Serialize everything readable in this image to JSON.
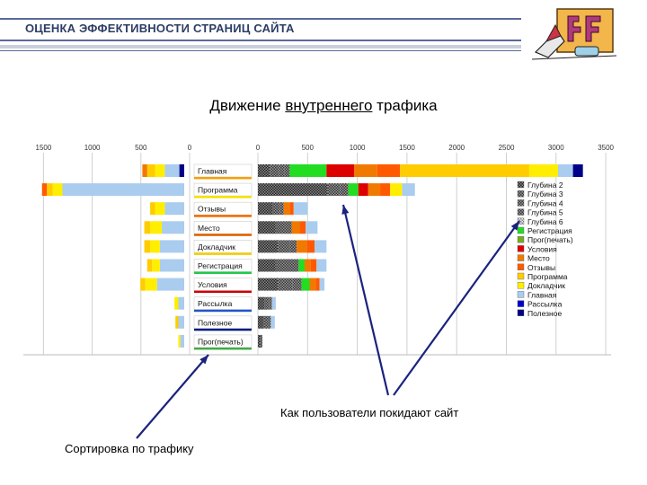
{
  "header": {
    "title": "ОЦЕНКА ЭФФЕКТИВНОСТИ СТРАНИЦ САЙТА"
  },
  "subtitle": {
    "pre": "Движение ",
    "underlined": "внутреннего",
    "post": " трафика"
  },
  "annotations": {
    "exit": "Как пользователи покидают сайт",
    "sort": "Сортировка по трафику"
  },
  "chart_data": {
    "type": "bar",
    "title": "Движение внутреннего трафика",
    "left_axis": {
      "ticks": [
        1500,
        1000,
        500,
        0
      ],
      "labels": [
        "1500",
        "1000",
        "500",
        "0"
      ]
    },
    "right_axis": {
      "ticks": [
        0,
        500,
        1000,
        1500,
        2000,
        2500,
        3000,
        3500
      ],
      "labels": [
        "0",
        "500",
        "1000",
        "1500",
        "2000",
        "2500",
        "3000",
        "3500"
      ]
    },
    "grid": true,
    "legend_placement": "right",
    "categories": [
      "Главная",
      "Программа",
      "Отзывы",
      "Место",
      "Докладчик",
      "Регистрация",
      "Условия",
      "Рассылка",
      "Полезное",
      "Прог(печать)"
    ],
    "category_colors": [
      "#f5a000",
      "#f5e400",
      "#f06a00",
      "#e06000",
      "#f5d000",
      "#22c84a",
      "#cc0000",
      "#2255cc",
      "#001a80",
      "#44aa44"
    ],
    "series": [
      {
        "name": "Глубина 2",
        "color": "#333333",
        "pattern": "dark"
      },
      {
        "name": "Глубина 3",
        "color": "#555555",
        "pattern": "dots"
      },
      {
        "name": "Глубина 4",
        "color": "#777777",
        "pattern": "dots"
      },
      {
        "name": "Глубина 5",
        "color": "#999999",
        "pattern": "dots"
      },
      {
        "name": "Глубина 6",
        "color": "#bbbbbb",
        "pattern": "light"
      },
      {
        "name": "Регистрация",
        "color": "#22dd22"
      },
      {
        "name": "Прог(печать)",
        "color": "#77aa22"
      },
      {
        "name": "Условия",
        "color": "#dd0000"
      },
      {
        "name": "Место",
        "color": "#f07a00"
      },
      {
        "name": "Отзывы",
        "color": "#ff5a00"
      },
      {
        "name": "Программа",
        "color": "#ffcc00"
      },
      {
        "name": "Докладчик",
        "color": "#ffee00"
      },
      {
        "name": "Главная",
        "color": "#aaccee"
      },
      {
        "name": "Рассылка",
        "color": "#0000cc"
      },
      {
        "name": "Полезное",
        "color": "#000088"
      }
    ],
    "incoming": [
      [
        {
          "s": "Полезное",
          "v": 50
        },
        {
          "s": "Главная",
          "v": 150
        },
        {
          "s": "Докладчик",
          "v": 100
        },
        {
          "s": "Программа",
          "v": 80
        },
        {
          "s": "Место",
          "v": 50
        }
      ],
      [
        {
          "s": "Главная",
          "v": 1250
        },
        {
          "s": "Докладчик",
          "v": 100
        },
        {
          "s": "Программа",
          "v": 60
        },
        {
          "s": "Отзывы",
          "v": 50
        }
      ],
      [
        {
          "s": "Главная",
          "v": 200
        },
        {
          "s": "Докладчик",
          "v": 100
        },
        {
          "s": "Программа",
          "v": 50
        }
      ],
      [
        {
          "s": "Главная",
          "v": 230
        },
        {
          "s": "Докладчик",
          "v": 120
        },
        {
          "s": "Программа",
          "v": 60
        }
      ],
      [
        {
          "s": "Главная",
          "v": 250
        },
        {
          "s": "Докладчик",
          "v": 100
        },
        {
          "s": "Программа",
          "v": 60
        }
      ],
      [
        {
          "s": "Главная",
          "v": 250
        },
        {
          "s": "Докладчик",
          "v": 80
        },
        {
          "s": "Программа",
          "v": 50
        }
      ],
      [
        {
          "s": "Главная",
          "v": 280
        },
        {
          "s": "Докладчик",
          "v": 120
        },
        {
          "s": "Программа",
          "v": 50
        }
      ],
      [
        {
          "s": "Главная",
          "v": 60
        },
        {
          "s": "Докладчик",
          "v": 40
        }
      ],
      [
        {
          "s": "Главная",
          "v": 60
        },
        {
          "s": "Программа",
          "v": 30
        }
      ],
      [
        {
          "s": "Главная",
          "v": 40
        },
        {
          "s": "Докладчик",
          "v": 20
        }
      ]
    ],
    "outgoing": [
      [
        {
          "s": "Глубина 2",
          "v": 120
        },
        {
          "s": "Глубина 3",
          "v": 90
        },
        {
          "s": "Глубина 4",
          "v": 60
        },
        {
          "s": "Глубина 5",
          "v": 50
        },
        {
          "s": "Регистрация",
          "v": 370
        },
        {
          "s": "Условия",
          "v": 280
        },
        {
          "s": "Место",
          "v": 230
        },
        {
          "s": "Отзывы",
          "v": 230
        },
        {
          "s": "Программа",
          "v": 1300
        },
        {
          "s": "Докладчик",
          "v": 290
        },
        {
          "s": "Главная",
          "v": 150
        },
        {
          "s": "Полезное",
          "v": 100
        }
      ],
      [
        {
          "s": "Глубина 2",
          "v": 700
        },
        {
          "s": "Глубина 3",
          "v": 130
        },
        {
          "s": "Глубина 4",
          "v": 80
        },
        {
          "s": "Регистрация",
          "v": 100
        },
        {
          "s": "Условия",
          "v": 100
        },
        {
          "s": "Место",
          "v": 120
        },
        {
          "s": "Отзывы",
          "v": 100
        },
        {
          "s": "Докладчик",
          "v": 120
        },
        {
          "s": "Главная",
          "v": 130
        }
      ],
      [
        {
          "s": "Глубина 2",
          "v": 150
        },
        {
          "s": "Глубина 3",
          "v": 70
        },
        {
          "s": "Глубина 4",
          "v": 40
        },
        {
          "s": "Место",
          "v": 60
        },
        {
          "s": "Отзывы",
          "v": 40
        },
        {
          "s": "Главная",
          "v": 140
        }
      ],
      [
        {
          "s": "Глубина 2",
          "v": 180
        },
        {
          "s": "Глубина 3",
          "v": 100
        },
        {
          "s": "Глубина 4",
          "v": 60
        },
        {
          "s": "Место",
          "v": 80
        },
        {
          "s": "Отзывы",
          "v": 60
        },
        {
          "s": "Главная",
          "v": 120
        }
      ],
      [
        {
          "s": "Глубина 2",
          "v": 200
        },
        {
          "s": "Глубина 3",
          "v": 120
        },
        {
          "s": "Глубина 4",
          "v": 70
        },
        {
          "s": "Место",
          "v": 100
        },
        {
          "s": "Отзывы",
          "v": 80
        },
        {
          "s": "Главная",
          "v": 120
        }
      ],
      [
        {
          "s": "Глубина 2",
          "v": 180
        },
        {
          "s": "Глубина 3",
          "v": 150
        },
        {
          "s": "Глубина 4",
          "v": 80
        },
        {
          "s": "Регистрация",
          "v": 60
        },
        {
          "s": "Место",
          "v": 60
        },
        {
          "s": "Отзывы",
          "v": 60
        },
        {
          "s": "Главная",
          "v": 100
        }
      ],
      [
        {
          "s": "Глубина 2",
          "v": 200
        },
        {
          "s": "Глубина 3",
          "v": 150
        },
        {
          "s": "Глубина 4",
          "v": 90
        },
        {
          "s": "Регистрация",
          "v": 80
        },
        {
          "s": "Место",
          "v": 60
        },
        {
          "s": "Отзывы",
          "v": 40
        },
        {
          "s": "Главная",
          "v": 50
        }
      ],
      [
        {
          "s": "Глубина 2",
          "v": 70
        },
        {
          "s": "Глубина 3",
          "v": 40
        },
        {
          "s": "Глубина 4",
          "v": 30
        },
        {
          "s": "Главная",
          "v": 40
        }
      ],
      [
        {
          "s": "Глубина 2",
          "v": 60
        },
        {
          "s": "Глубина 3",
          "v": 40
        },
        {
          "s": "Глубина 4",
          "v": 30
        },
        {
          "s": "Главная",
          "v": 40
        }
      ],
      [
        {
          "s": "Глубина 2",
          "v": 25
        },
        {
          "s": "Глубина 5",
          "v": 20
        }
      ]
    ]
  }
}
